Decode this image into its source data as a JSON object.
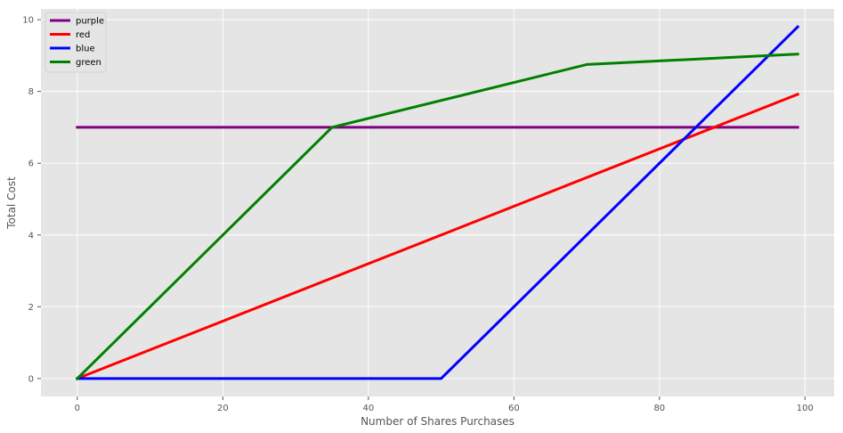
{
  "chart_data": {
    "type": "line",
    "title": "",
    "xlabel": "Number of Shares Purchases",
    "ylabel": "Total Cost",
    "xlim": [
      -5,
      104
    ],
    "ylim": [
      -0.5,
      10.3
    ],
    "xticks": [
      0,
      20,
      40,
      60,
      80,
      100
    ],
    "yticks": [
      0,
      2,
      4,
      6,
      8,
      10
    ],
    "xtick_labels": [
      "0",
      "20",
      "40",
      "60",
      "80",
      "100"
    ],
    "ytick_labels": [
      "0",
      "2",
      "4",
      "6",
      "8",
      "10"
    ],
    "grid": true,
    "legend_position": "top-left",
    "background_color": "#e5e5e5",
    "grid_color": "#ffffff",
    "series": [
      {
        "name": "purple",
        "color": "#800080",
        "points": [
          [
            0,
            7.0
          ],
          [
            99,
            7.0
          ]
        ]
      },
      {
        "name": "red",
        "color": "#ff0000",
        "points": [
          [
            0,
            0.0
          ],
          [
            99,
            7.92
          ]
        ]
      },
      {
        "name": "blue",
        "color": "#0000ff",
        "points": [
          [
            0,
            0.0
          ],
          [
            50,
            0.0
          ],
          [
            99,
            9.8
          ]
        ]
      },
      {
        "name": "green",
        "color": "#008000",
        "points": [
          [
            0,
            0.0
          ],
          [
            35,
            7.0
          ],
          [
            70,
            8.75
          ],
          [
            99,
            9.04
          ]
        ]
      }
    ]
  }
}
